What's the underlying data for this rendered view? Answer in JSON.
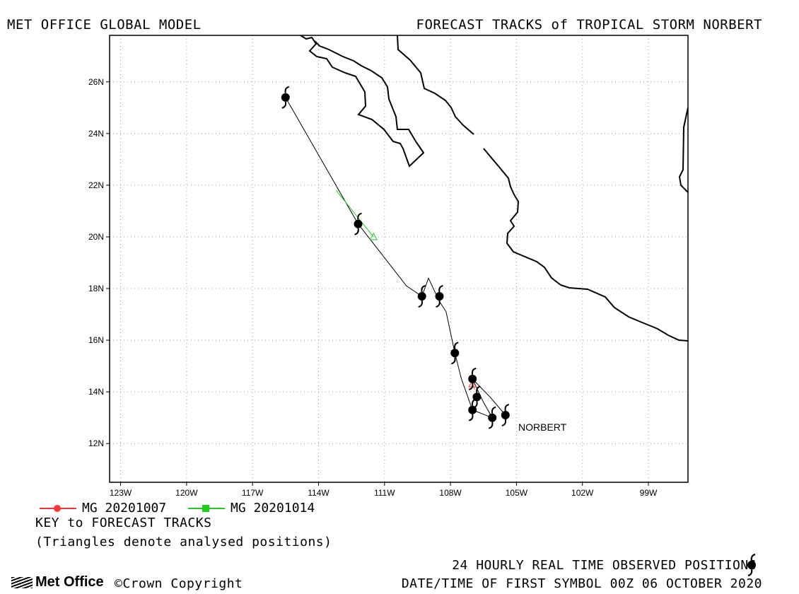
{
  "header": {
    "left_title": "MET OFFICE GLOBAL MODEL",
    "right_title": "FORECAST TRACKS of TROPICAL STORM NORBERT"
  },
  "map": {
    "lon_range": [
      -123.5,
      -97.2
    ],
    "lat_range": [
      10.5,
      27.8
    ],
    "lon_ticks": [
      {
        "value": -123,
        "label": "123W"
      },
      {
        "value": -120,
        "label": "120W"
      },
      {
        "value": -117,
        "label": "117W"
      },
      {
        "value": -114,
        "label": "114W"
      },
      {
        "value": -111,
        "label": "111W"
      },
      {
        "value": -108,
        "label": "108W"
      },
      {
        "value": -105,
        "label": "105W"
      },
      {
        "value": -102,
        "label": "102W"
      },
      {
        "value": -99,
        "label": "99W"
      }
    ],
    "lat_ticks": [
      {
        "value": 12,
        "label": "12N"
      },
      {
        "value": 14,
        "label": "14N"
      },
      {
        "value": 16,
        "label": "16N"
      },
      {
        "value": 18,
        "label": "18N"
      },
      {
        "value": 20,
        "label": "20N"
      },
      {
        "value": 22,
        "label": "22N"
      },
      {
        "value": 24,
        "label": "24N"
      },
      {
        "value": 26,
        "label": "26N"
      }
    ],
    "grid": true,
    "storm_label": "NORBERT",
    "observed_positions": [
      {
        "lon": -105.5,
        "lat": 13.1
      },
      {
        "lon": -106.1,
        "lat": 13.0
      },
      {
        "lon": -107.0,
        "lat": 13.3
      },
      {
        "lon": -106.8,
        "lat": 13.8
      },
      {
        "lon": -107.0,
        "lat": 14.5
      },
      {
        "lon": -107.8,
        "lat": 15.5
      },
      {
        "lon": -108.5,
        "lat": 17.7
      },
      {
        "lon": -109.3,
        "lat": 17.7
      },
      {
        "lon": -112.2,
        "lat": 20.5
      },
      {
        "lon": -115.5,
        "lat": 25.4
      }
    ],
    "observed_track": [
      {
        "lon": -105.5,
        "lat": 13.1
      },
      {
        "lon": -106.2,
        "lat": 13.8
      },
      {
        "lon": -107.0,
        "lat": 14.5
      },
      {
        "lon": -106.5,
        "lat": 13.6
      },
      {
        "lon": -106.1,
        "lat": 13.0
      },
      {
        "lon": -107.0,
        "lat": 13.3
      },
      {
        "lon": -107.5,
        "lat": 14.5
      },
      {
        "lon": -107.8,
        "lat": 15.5
      },
      {
        "lon": -108.2,
        "lat": 17.1
      },
      {
        "lon": -108.5,
        "lat": 17.5
      },
      {
        "lon": -109.0,
        "lat": 18.4
      },
      {
        "lon": -109.3,
        "lat": 17.7
      },
      {
        "lon": -110.0,
        "lat": 18.1
      },
      {
        "lon": -112.2,
        "lat": 20.5
      },
      {
        "lon": -115.5,
        "lat": 25.4
      }
    ],
    "forecast_tracks": [
      {
        "name": "MG 20201007",
        "color": "#ff3333",
        "marker": "circle",
        "points": [
          {
            "lon": -107.0,
            "lat": 14.3
          },
          {
            "lon": -106.9,
            "lat": 14.1
          }
        ]
      },
      {
        "name": "MG 20201014",
        "color": "#22cc22",
        "marker": "square",
        "points": [
          {
            "lon": -111.5,
            "lat": 20.0
          },
          {
            "lon": -113.2,
            "lat": 21.8
          }
        ]
      }
    ],
    "colors": {
      "coast": "#000000",
      "grid": "#999999",
      "frame": "#000000"
    }
  },
  "legend": {
    "items": [
      {
        "label": "MG 20201007",
        "color": "#ff3333",
        "marker": "circle"
      },
      {
        "label": "MG 20201014",
        "color": "#22cc22",
        "marker": "square"
      }
    ],
    "key_title": "KEY to FORECAST TRACKS",
    "key_note": "(Triangles denote analysed positions)"
  },
  "footer": {
    "logo_text": "Met Office",
    "copyright": "©Crown Copyright",
    "observed_note": "24 HOURLY REAL TIME OBSERVED POSITIONS",
    "date_note": "DATE/TIME OF FIRST SYMBOL 00Z 06 OCTOBER 2020"
  }
}
